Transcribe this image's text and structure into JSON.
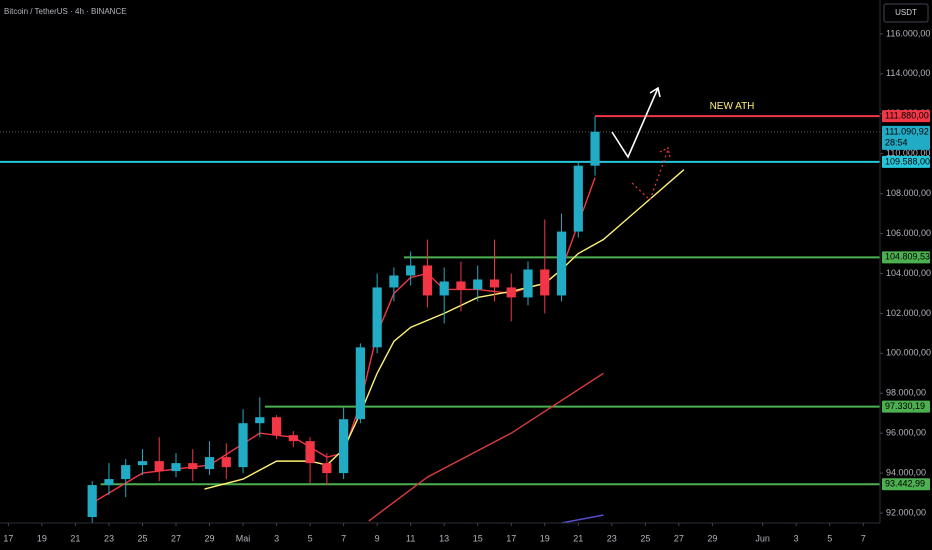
{
  "chart_data": {
    "type": "candlestick",
    "title": "Bitcoin / TetherUS · 4h · BINANCE",
    "currency": "USDT",
    "annotation": "NEW ATH",
    "up_color": "#22abc4",
    "down_color": "#f23645",
    "xlim": [
      -0.5,
      52
    ],
    "ylim": [
      91500,
      117700
    ],
    "grid": false,
    "xticks": [
      {
        "value": 0,
        "label": "17"
      },
      {
        "value": 2,
        "label": "19"
      },
      {
        "value": 4,
        "label": "21"
      },
      {
        "value": 6,
        "label": "23"
      },
      {
        "value": 8,
        "label": "25"
      },
      {
        "value": 10,
        "label": "27"
      },
      {
        "value": 12,
        "label": "29"
      },
      {
        "value": 14,
        "label": "Mai"
      },
      {
        "value": 16,
        "label": "3"
      },
      {
        "value": 18,
        "label": "5"
      },
      {
        "value": 20,
        "label": "7"
      },
      {
        "value": 22,
        "label": "9"
      },
      {
        "value": 24,
        "label": "11"
      },
      {
        "value": 26,
        "label": "13"
      },
      {
        "value": 28,
        "label": "15"
      },
      {
        "value": 30,
        "label": "17"
      },
      {
        "value": 32,
        "label": "19"
      },
      {
        "value": 34,
        "label": "21"
      },
      {
        "value": 36,
        "label": "23"
      },
      {
        "value": 38,
        "label": "25"
      },
      {
        "value": 40,
        "label": "27"
      },
      {
        "value": 42,
        "label": "29"
      },
      {
        "value": 45,
        "label": "Jun"
      },
      {
        "value": 47,
        "label": "3"
      },
      {
        "value": 49,
        "label": "5"
      },
      {
        "value": 51,
        "label": "7"
      }
    ],
    "yticks": [
      {
        "value": 92000,
        "label": "92.000,00"
      },
      {
        "value": 94000,
        "label": "94.000,00"
      },
      {
        "value": 96000,
        "label": "96.000,00"
      },
      {
        "value": 98000,
        "label": "98.000,00"
      },
      {
        "value": 100000,
        "label": "100.000,00"
      },
      {
        "value": 102000,
        "label": "102.000,00"
      },
      {
        "value": 104000,
        "label": "104.000,00"
      },
      {
        "value": 106000,
        "label": "106.000,00"
      },
      {
        "value": 108000,
        "label": "108.000,00"
      },
      {
        "value": 110000,
        "label": "110.000,00"
      },
      {
        "value": 112000,
        "label": "112.000,00"
      },
      {
        "value": 114000,
        "label": "114.000,00"
      },
      {
        "value": 116000,
        "label": "116.000,00"
      }
    ],
    "x": [
      5,
      6,
      7,
      8,
      9,
      10,
      11,
      12,
      13,
      14,
      15,
      16,
      17,
      18,
      19,
      20,
      21,
      22,
      23,
      24,
      25,
      26,
      27,
      28,
      29,
      30,
      31,
      32,
      33,
      34,
      35
    ],
    "open": [
      91800,
      93400,
      93700,
      94400,
      94600,
      94100,
      94500,
      94200,
      94800,
      94300,
      96500,
      96800,
      95900,
      95600,
      94500,
      94000,
      96700,
      100300,
      103300,
      103900,
      104400,
      102900,
      103600,
      103200,
      103700,
      103300,
      102800,
      104200,
      102900,
      106100,
      109400
    ],
    "high": [
      93600,
      94500,
      94700,
      95200,
      95800,
      95000,
      95200,
      95600,
      95500,
      97200,
      97800,
      96900,
      96100,
      95800,
      95000,
      97300,
      100500,
      104000,
      104300,
      105100,
      105700,
      104300,
      104600,
      104400,
      105700,
      104000,
      104600,
      106700,
      107000,
      109600,
      111880
    ],
    "low": [
      91500,
      92900,
      92800,
      93900,
      93600,
      93800,
      93600,
      93900,
      93700,
      94000,
      95800,
      95700,
      95300,
      93500,
      93400,
      93700,
      96500,
      100000,
      102600,
      103400,
      102300,
      101500,
      102100,
      102600,
      102600,
      101600,
      102400,
      102000,
      102600,
      105800,
      108900
    ],
    "close": [
      93400,
      93700,
      94400,
      94600,
      94100,
      94500,
      94200,
      94800,
      94300,
      96500,
      96800,
      95900,
      95600,
      94500,
      94000,
      96700,
      100300,
      103300,
      103900,
      104400,
      102900,
      103600,
      103200,
      103700,
      103300,
      102800,
      104200,
      102900,
      106100,
      109400,
      111100
    ],
    "moving_averages": [
      {
        "color": "#f23645",
        "x": [
          5,
          8,
          12,
          15,
          17,
          19,
          20,
          21,
          22,
          23,
          24,
          25,
          26,
          28,
          30,
          31,
          32,
          33,
          34,
          35
        ],
        "values": [
          92500,
          94000,
          94400,
          96000,
          95800,
          94800,
          95000,
          97500,
          101000,
          103000,
          103800,
          104000,
          103200,
          103200,
          103000,
          103300,
          103500,
          104200,
          106500,
          108800
        ]
      },
      {
        "color": "#fff176",
        "x": [
          11.7,
          14,
          16,
          18,
          19,
          20,
          21,
          22,
          23,
          24,
          26,
          28,
          30,
          32,
          33,
          34,
          35.5,
          40.3
        ],
        "values": [
          93200,
          93700,
          94600,
          94600,
          94400,
          95200,
          97000,
          99000,
          100600,
          101300,
          102000,
          102800,
          103100,
          103500,
          104200,
          105000,
          105700,
          109200
        ]
      },
      {
        "color": "#d93c3c",
        "x": [
          21.5,
          25,
          30,
          35.5
        ],
        "values": [
          91600,
          93800,
          96000,
          99000
        ]
      },
      {
        "color": "#5c4fd8",
        "x": [
          33,
          35.5
        ],
        "values": [
          91500,
          91900
        ]
      }
    ],
    "levels": [
      {
        "value": 111880,
        "label": "111.880,00",
        "color": "#f23645",
        "from": 35
      },
      {
        "value": 109588,
        "label": "109.588,00",
        "color": "#26c6da",
        "from": -0.5
      },
      {
        "value": 104809.53,
        "label": "104.809,53",
        "color": "#4caf50",
        "from": 23.6
      },
      {
        "value": 97330.19,
        "label": "97.330,19",
        "color": "#4caf50",
        "from": 15.3
      },
      {
        "value": 93442.99,
        "label": "93.442,99",
        "color": "#4caf50",
        "from": 5.5
      }
    ],
    "last_price": {
      "value": 111090.92,
      "label": "111.090,92",
      "countdown": "28:54",
      "color": "#22abc4"
    }
  }
}
